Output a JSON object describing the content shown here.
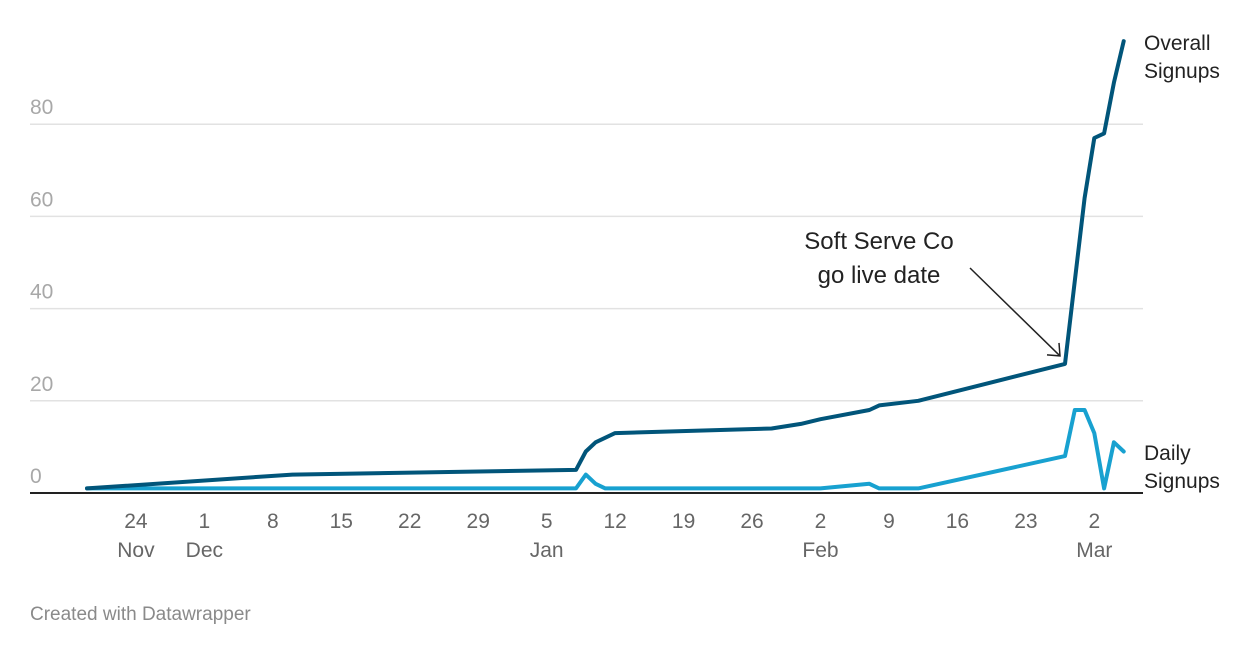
{
  "chart_data": {
    "type": "line",
    "title": "",
    "xlabel": "",
    "ylabel": "",
    "ylim": [
      0,
      100
    ],
    "yticks": [
      0,
      20,
      40,
      60,
      80
    ],
    "grid": true,
    "xstart": "2022-11-19",
    "xticks": [
      {
        "date": "2022-11-24",
        "day": "24",
        "month": "Nov"
      },
      {
        "date": "2022-12-01",
        "day": "1",
        "month": "Dec"
      },
      {
        "date": "2022-12-08",
        "day": "8",
        "month": ""
      },
      {
        "date": "2022-12-15",
        "day": "15",
        "month": ""
      },
      {
        "date": "2022-12-22",
        "day": "22",
        "month": ""
      },
      {
        "date": "2022-12-29",
        "day": "29",
        "month": ""
      },
      {
        "date": "2023-01-05",
        "day": "5",
        "month": "Jan"
      },
      {
        "date": "2023-01-12",
        "day": "12",
        "month": ""
      },
      {
        "date": "2023-01-19",
        "day": "19",
        "month": ""
      },
      {
        "date": "2023-01-26",
        "day": "26",
        "month": ""
      },
      {
        "date": "2023-02-02",
        "day": "2",
        "month": "Feb"
      },
      {
        "date": "2023-02-09",
        "day": "9",
        "month": ""
      },
      {
        "date": "2023-02-16",
        "day": "16",
        "month": ""
      },
      {
        "date": "2023-02-23",
        "day": "23",
        "month": ""
      },
      {
        "date": "2023-03-02",
        "day": "2",
        "month": "Mar"
      }
    ],
    "series": [
      {
        "name": "Overall Signups",
        "label_lines": [
          "Overall",
          "Signups"
        ],
        "color": "#01557a",
        "points": [
          [
            "2022-11-19",
            1
          ],
          [
            "2022-12-10",
            4
          ],
          [
            "2023-01-08",
            5
          ],
          [
            "2023-01-09",
            9
          ],
          [
            "2023-01-10",
            11
          ],
          [
            "2023-01-12",
            13
          ],
          [
            "2023-01-28",
            14
          ],
          [
            "2023-01-31",
            15
          ],
          [
            "2023-02-02",
            16
          ],
          [
            "2023-02-07",
            18
          ],
          [
            "2023-02-08",
            19
          ],
          [
            "2023-02-12",
            20
          ],
          [
            "2023-02-27",
            28
          ],
          [
            "2023-03-01",
            64
          ],
          [
            "2023-03-02",
            77
          ],
          [
            "2023-03-03",
            78
          ],
          [
            "2023-03-04",
            89
          ],
          [
            "2023-03-05",
            98
          ]
        ]
      },
      {
        "name": "Daily Signups",
        "label_lines": [
          "Daily",
          "Signups"
        ],
        "color": "#18a1d0",
        "points": [
          [
            "2022-11-19",
            1
          ],
          [
            "2023-01-08",
            1
          ],
          [
            "2023-01-09",
            4
          ],
          [
            "2023-01-10",
            2
          ],
          [
            "2023-01-11",
            1
          ],
          [
            "2023-02-02",
            1
          ],
          [
            "2023-02-07",
            2
          ],
          [
            "2023-02-08",
            1
          ],
          [
            "2023-02-12",
            1
          ],
          [
            "2023-02-27",
            8
          ],
          [
            "2023-02-28",
            18
          ],
          [
            "2023-03-01",
            18
          ],
          [
            "2023-03-02",
            13
          ],
          [
            "2023-03-03",
            1
          ],
          [
            "2023-03-04",
            11
          ],
          [
            "2023-03-05",
            9
          ]
        ]
      }
    ],
    "annotation": {
      "lines": [
        "Soft Serve Co",
        "go live date"
      ],
      "target_date": "2023-02-27",
      "target_value": 28
    }
  },
  "footer": "Created with Datawrapper"
}
